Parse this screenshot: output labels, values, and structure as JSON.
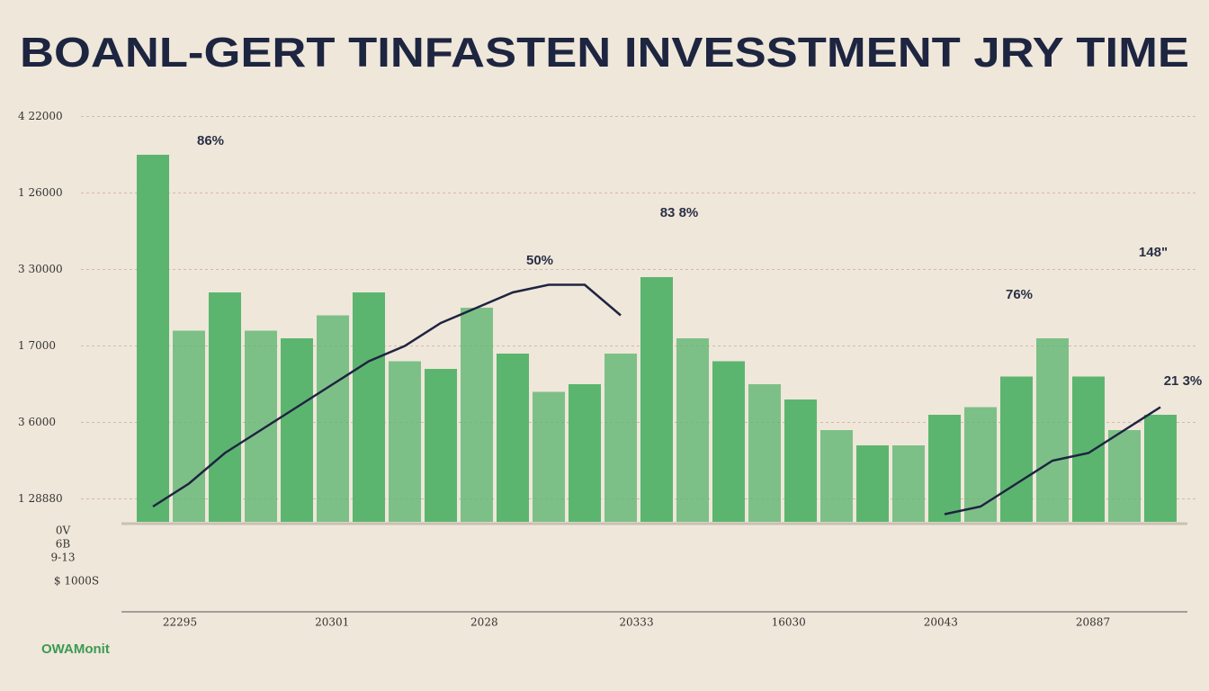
{
  "chart_data": {
    "type": "bar",
    "title": "BOANL-GERT TINFASTEN  INVESSTMENT  JRY TIME",
    "categories": [
      null,
      null,
      null,
      null,
      null,
      null,
      null,
      null,
      null,
      null,
      null,
      null,
      null,
      null,
      null,
      null,
      null,
      null,
      null,
      null,
      null,
      null,
      null,
      null,
      null,
      null,
      null,
      null,
      null
    ],
    "values": [
      4.8,
      2.5,
      3.0,
      2.5,
      2.4,
      2.7,
      3.0,
      2.1,
      2.0,
      2.8,
      2.2,
      1.7,
      1.8,
      2.2,
      3.2,
      2.4,
      2.1,
      1.8,
      1.6,
      1.2,
      1.0,
      1.0,
      1.4,
      1.5,
      1.9,
      2.4,
      1.9,
      1.2,
      1.4
    ],
    "color": "#5cb56f",
    "line": {
      "color": "#1f2440",
      "values": [
        0.2,
        0.5,
        0.9,
        1.2,
        1.5,
        1.8,
        2.1,
        2.3,
        2.6,
        2.8,
        3.0,
        3.1,
        3.1,
        2.7,
        null,
        null,
        null,
        null,
        null,
        null,
        null,
        null,
        0.1,
        0.2,
        0.5,
        0.8,
        0.9,
        1.2,
        1.5
      ]
    },
    "ylim": [
      0,
      5.4
    ],
    "yticks": [
      {
        "value": 0.3,
        "label": "1 28880"
      },
      {
        "value": 1.3,
        "label": "3 6000"
      },
      {
        "value": 2.3,
        "label": "1 7000"
      },
      {
        "value": 3.3,
        "label": "3 30000"
      },
      {
        "value": 4.3,
        "label": "1 26000"
      },
      {
        "value": 5.3,
        "label": "4 22000"
      }
    ],
    "grid": true,
    "x_labels": [
      "22295",
      "20301",
      "2028",
      "20333",
      "16030",
      "20043",
      "20887"
    ],
    "annotations": [
      "86%",
      "83 8%",
      "50%",
      "76%",
      "148\"",
      "21 3%"
    ],
    "side_labels": [
      "0V",
      "6B",
      "9-13",
      "$ 1000S"
    ],
    "source": "OWAMonit"
  }
}
